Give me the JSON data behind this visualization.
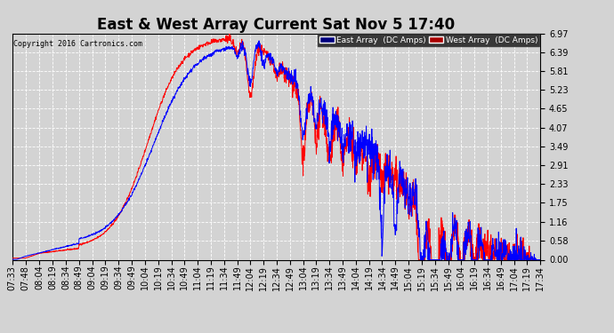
{
  "title": "East & West Array Current Sat Nov 5 17:40",
  "copyright": "Copyright 2016 Cartronics.com",
  "east_label": "East Array  (DC Amps)",
  "west_label": "West Array  (DC Amps)",
  "east_color": "#0000ff",
  "west_color": "#ff0000",
  "east_bg": "#000080",
  "west_bg": "#aa0000",
  "ylim": [
    0.0,
    6.97
  ],
  "yticks": [
    0.0,
    0.58,
    1.16,
    1.75,
    2.33,
    2.91,
    3.49,
    4.07,
    4.65,
    5.23,
    5.81,
    6.39,
    6.97
  ],
  "xtick_labels": [
    "07:33",
    "07:48",
    "08:04",
    "08:19",
    "08:34",
    "08:49",
    "09:04",
    "09:19",
    "09:34",
    "09:49",
    "10:04",
    "10:19",
    "10:34",
    "10:49",
    "11:04",
    "11:19",
    "11:34",
    "11:49",
    "12:04",
    "12:19",
    "12:34",
    "12:49",
    "13:04",
    "13:19",
    "13:34",
    "13:49",
    "14:04",
    "14:19",
    "14:34",
    "14:49",
    "15:04",
    "15:19",
    "15:34",
    "15:49",
    "16:04",
    "16:19",
    "16:34",
    "16:49",
    "17:04",
    "17:19",
    "17:34"
  ],
  "background_color": "#d3d3d3",
  "grid_color": "#ffffff",
  "title_fontsize": 12,
  "tick_fontsize": 7
}
